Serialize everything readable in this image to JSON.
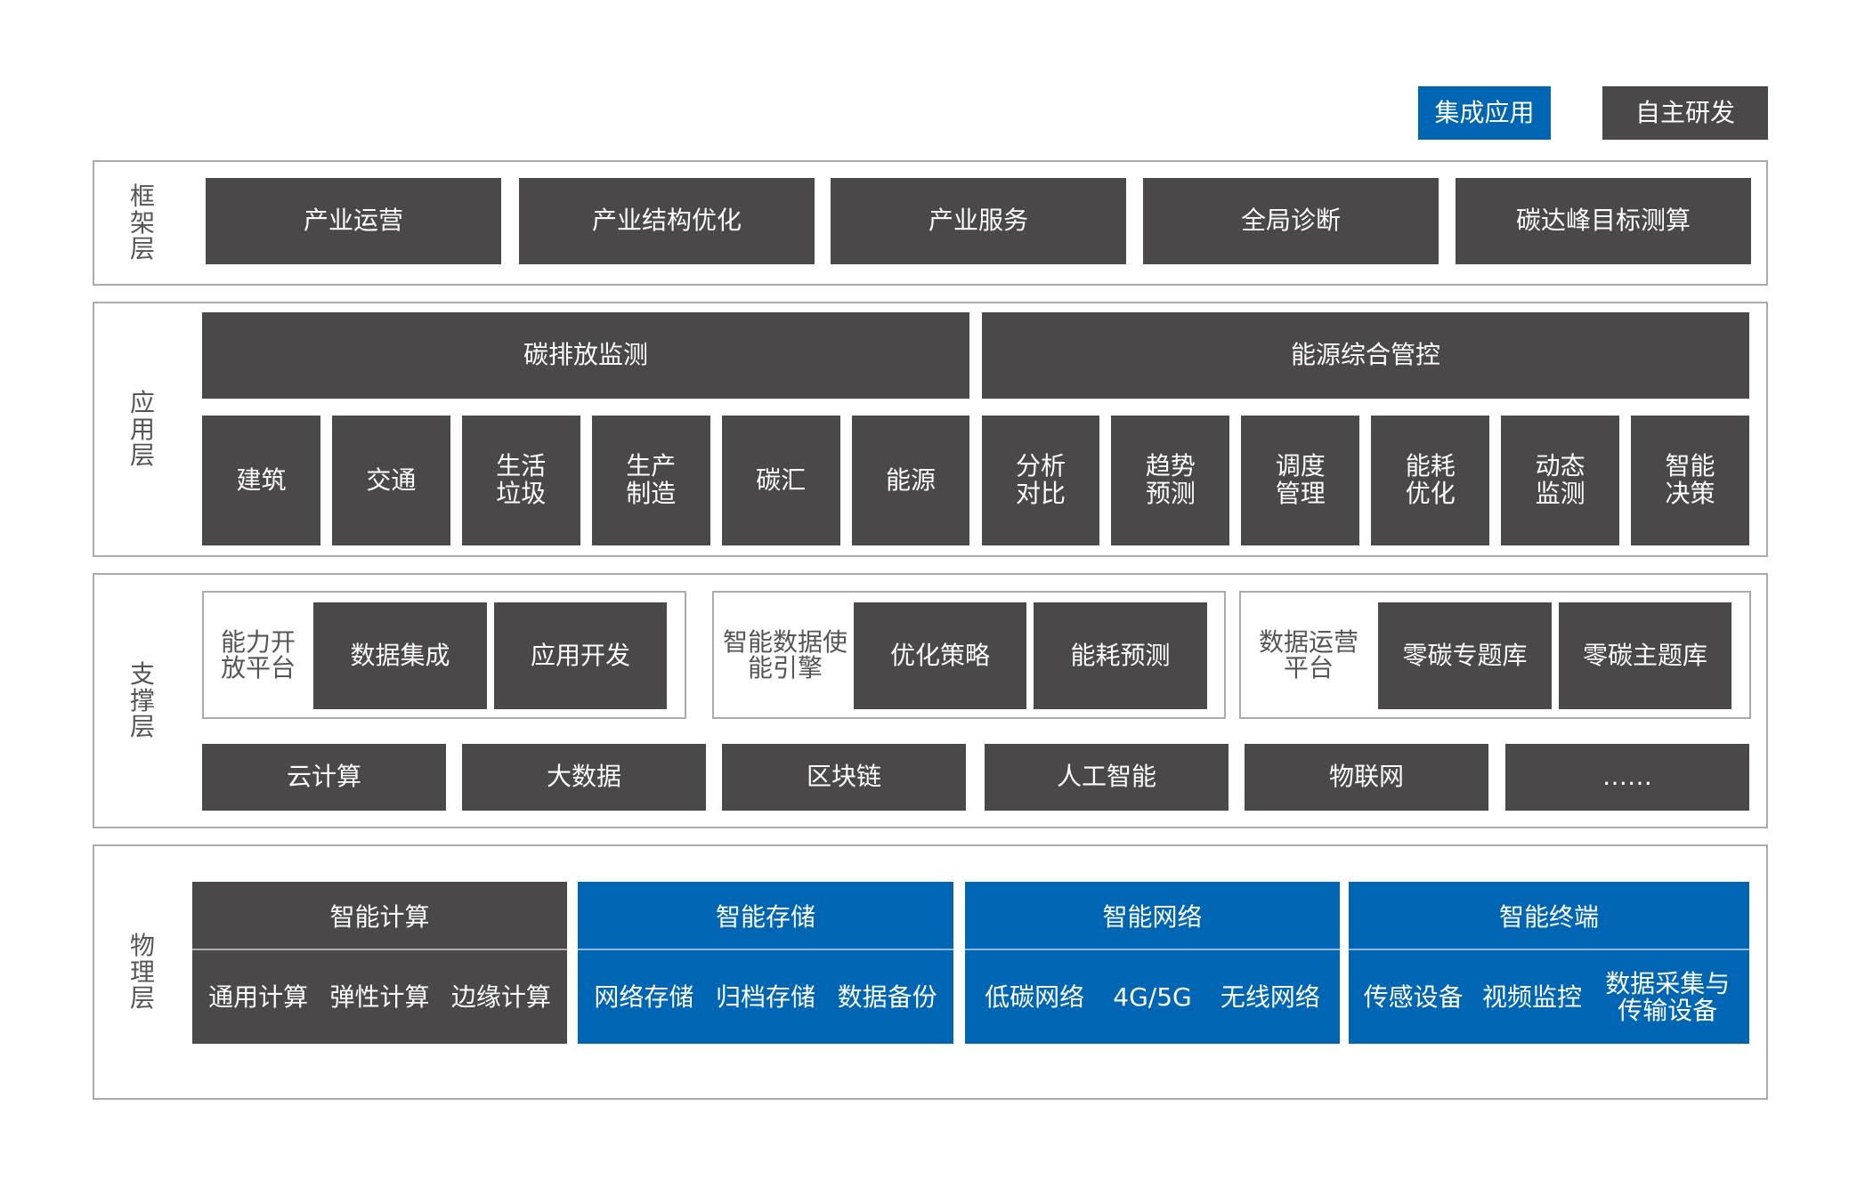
{
  "legend": {
    "integrated": "集成应用",
    "self_developed": "自主研发",
    "integrated_color": "#0066b3",
    "self_developed_color": "#4a4849"
  },
  "framework": {
    "label": "框架层",
    "items": [
      "产业运营",
      "产业结构优化",
      "产业服务",
      "全局诊断",
      "碳达峰目标测算"
    ]
  },
  "application": {
    "label": "应用层",
    "headers": [
      "碳排放监测",
      "能源综合管控"
    ],
    "items": [
      "建筑",
      "交通",
      "生活垃圾",
      "生产制造",
      "碳汇",
      "能源",
      "分析对比",
      "趋势预测",
      "调度管理",
      "能耗优化",
      "动态监测",
      "智能决策"
    ]
  },
  "support": {
    "label": "支撑层",
    "groups": [
      {
        "label": "能力开放平台",
        "items": [
          "数据集成",
          "应用开发"
        ]
      },
      {
        "label": "智能数据使能引擎",
        "items": [
          "优化策略",
          "能耗预测"
        ]
      },
      {
        "label": "数据运营平台",
        "items": [
          "零碳专题库",
          "零碳主题库"
        ]
      }
    ],
    "tech": [
      "云计算",
      "大数据",
      "区块链",
      "人工智能",
      "物联网",
      "……"
    ]
  },
  "physical": {
    "label": "物理层",
    "columns": [
      {
        "title": "智能计算",
        "items": [
          "通用计算",
          "弹性计算",
          "边缘计算"
        ],
        "type": "self_developed"
      },
      {
        "title": "智能存储",
        "items": [
          "网络存储",
          "归档存储",
          "数据备份"
        ],
        "type": "integrated"
      },
      {
        "title": "智能网络",
        "items": [
          "低碳网络",
          "4G/5G",
          "无线网络"
        ],
        "type": "integrated"
      },
      {
        "title": "智能终端",
        "items": [
          "传感设备",
          "视频监控",
          "数据采集与传输设备"
        ],
        "type": "integrated"
      }
    ]
  }
}
